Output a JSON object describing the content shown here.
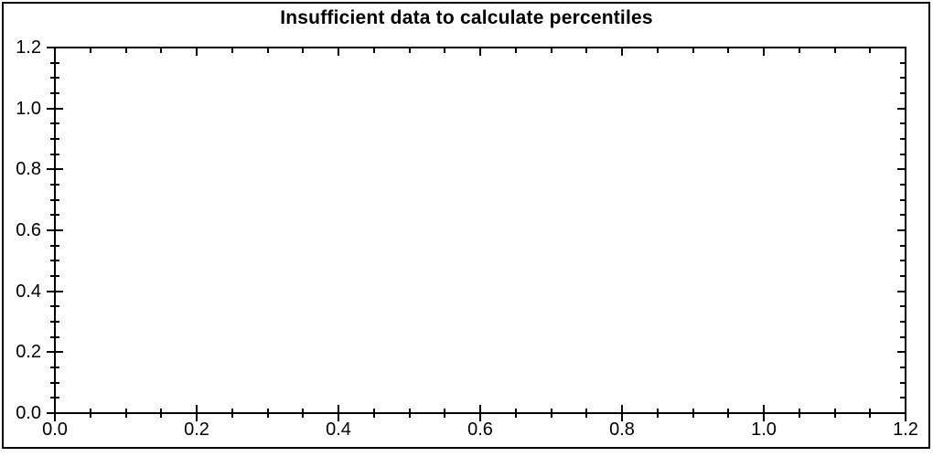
{
  "colors": {
    "background": "#ffffff",
    "axis": "#000000",
    "text": "#000000",
    "border": "#000000"
  },
  "chart_data": {
    "type": "scatter",
    "title": "Insufficient data to calculate percentiles",
    "subtitle": "",
    "xlabel": "",
    "ylabel": "",
    "xlim": [
      0.0,
      1.2
    ],
    "ylim": [
      0.0,
      1.2
    ],
    "x_major_ticks": [
      0.0,
      0.2,
      0.4,
      0.6,
      0.8,
      1.0,
      1.2
    ],
    "x_tick_labels": [
      "0.0",
      "0.2",
      "0.4",
      "0.6",
      "0.8",
      "1.0",
      "1.2"
    ],
    "y_major_ticks": [
      0.0,
      0.2,
      0.4,
      0.6,
      0.8,
      1.0,
      1.2
    ],
    "y_tick_labels": [
      "0.0",
      "0.2",
      "0.4",
      "0.6",
      "0.8",
      "1.0",
      "1.2"
    ],
    "minor_tick_interval": 0.05,
    "grid": false,
    "legend": null,
    "series": [],
    "annotations": []
  }
}
